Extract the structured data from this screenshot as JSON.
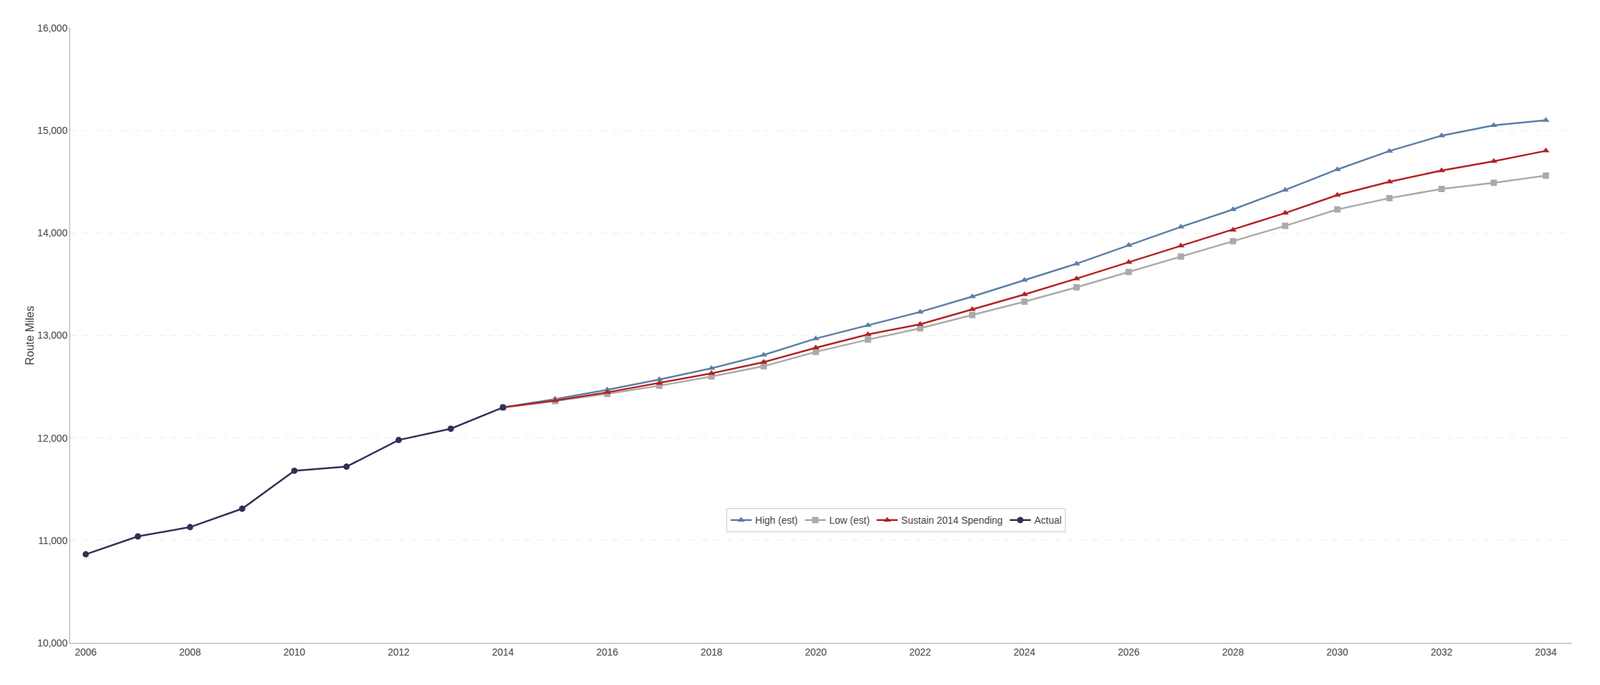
{
  "chart_data": {
    "type": "line",
    "ylabel": "Route Miles",
    "xlim": [
      2005.7,
      2034.5
    ],
    "ylim": [
      10000,
      16000
    ],
    "xticks": [
      2006,
      2008,
      2010,
      2012,
      2014,
      2016,
      2018,
      2020,
      2022,
      2024,
      2026,
      2028,
      2030,
      2032,
      2034
    ],
    "yticks": [
      {
        "value": 10000,
        "label": "10,000"
      },
      {
        "value": 11000,
        "label": "11,000"
      },
      {
        "value": 12000,
        "label": "12,000"
      },
      {
        "value": 13000,
        "label": "13,000"
      },
      {
        "value": 14000,
        "label": "14,000"
      },
      {
        "value": 15000,
        "label": "15,000"
      },
      {
        "value": 16000,
        "label": "16,000"
      }
    ],
    "grid": "y",
    "legend": "bottom",
    "series": [
      {
        "name": "High (est)",
        "color": "#5B7FA6",
        "marker": "triangle",
        "x": [
          2014,
          2015,
          2016,
          2017,
          2018,
          2019,
          2020,
          2021,
          2022,
          2023,
          2024,
          2025,
          2026,
          2027,
          2028,
          2029,
          2030,
          2031,
          2032,
          2033,
          2034
        ],
        "values": [
          12298,
          12380,
          12470,
          12570,
          12680,
          12810,
          12970,
          13100,
          13230,
          13380,
          13540,
          13700,
          13880,
          14060,
          14230,
          14420,
          14620,
          14800,
          14950,
          15050,
          15100
        ]
      },
      {
        "name": "Low (est)",
        "color": "#AAAAAA",
        "marker": "square",
        "x": [
          2014,
          2015,
          2016,
          2017,
          2018,
          2019,
          2020,
          2021,
          2022,
          2023,
          2024,
          2025,
          2026,
          2027,
          2028,
          2029,
          2030,
          2031,
          2032,
          2033,
          2034
        ],
        "values": [
          12298,
          12360,
          12430,
          12510,
          12600,
          12700,
          12840,
          12960,
          13070,
          13200,
          13330,
          13470,
          13620,
          13770,
          13920,
          14070,
          14230,
          14340,
          14430,
          14490,
          14560
        ]
      },
      {
        "name": "Sustain 2014 Spending",
        "color": "#B22222",
        "marker": "triangle",
        "x": [
          2014,
          2015,
          2016,
          2017,
          2018,
          2019,
          2020,
          2021,
          2022,
          2023,
          2024,
          2025,
          2026,
          2027,
          2028,
          2029,
          2030,
          2031,
          2032,
          2033,
          2034
        ],
        "values": [
          12298,
          12365,
          12445,
          12535,
          12630,
          12740,
          12880,
          13010,
          13110,
          13255,
          13400,
          13555,
          13715,
          13875,
          14030,
          14195,
          14370,
          14500,
          14610,
          14700,
          14802
        ]
      },
      {
        "name": "Actual",
        "color": "#2E3155",
        "marker": "circle",
        "x": [
          2006,
          2007,
          2008,
          2009,
          2010,
          2011,
          2012,
          2013,
          2014
        ],
        "values": [
          10865,
          11040,
          11130,
          11310,
          11680,
          11720,
          11980,
          12090,
          12298
        ]
      }
    ]
  }
}
